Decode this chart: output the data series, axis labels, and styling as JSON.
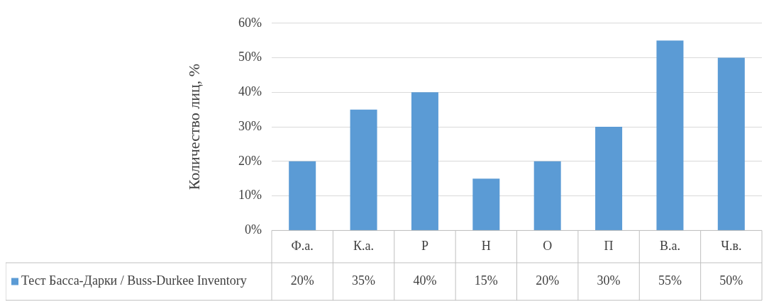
{
  "chart_data": {
    "type": "bar",
    "ylabel": "Количество лиц, %",
    "categories": [
      "Ф.а.",
      "К.а.",
      "Р",
      "Н",
      "О",
      "П",
      "В.а.",
      "Ч.в."
    ],
    "series": [
      {
        "name": "Тест Басса-Дарки / Buss-Durkee Inventory",
        "color": "#5b9bd5",
        "values": [
          20,
          35,
          40,
          15,
          20,
          30,
          55,
          50
        ],
        "value_labels": [
          "20%",
          "35%",
          "40%",
          "15%",
          "20%",
          "30%",
          "55%",
          "50%"
        ]
      }
    ],
    "ylim": [
      0,
      60
    ],
    "yticks": [
      {
        "value": 0,
        "label": "0%"
      },
      {
        "value": 10,
        "label": "10%"
      },
      {
        "value": 20,
        "label": "20%"
      },
      {
        "value": 30,
        "label": "30%"
      },
      {
        "value": 40,
        "label": "40%"
      },
      {
        "value": 50,
        "label": "50%"
      },
      {
        "value": 60,
        "label": "60%"
      }
    ],
    "grid": "y",
    "legend": "bottom left"
  }
}
